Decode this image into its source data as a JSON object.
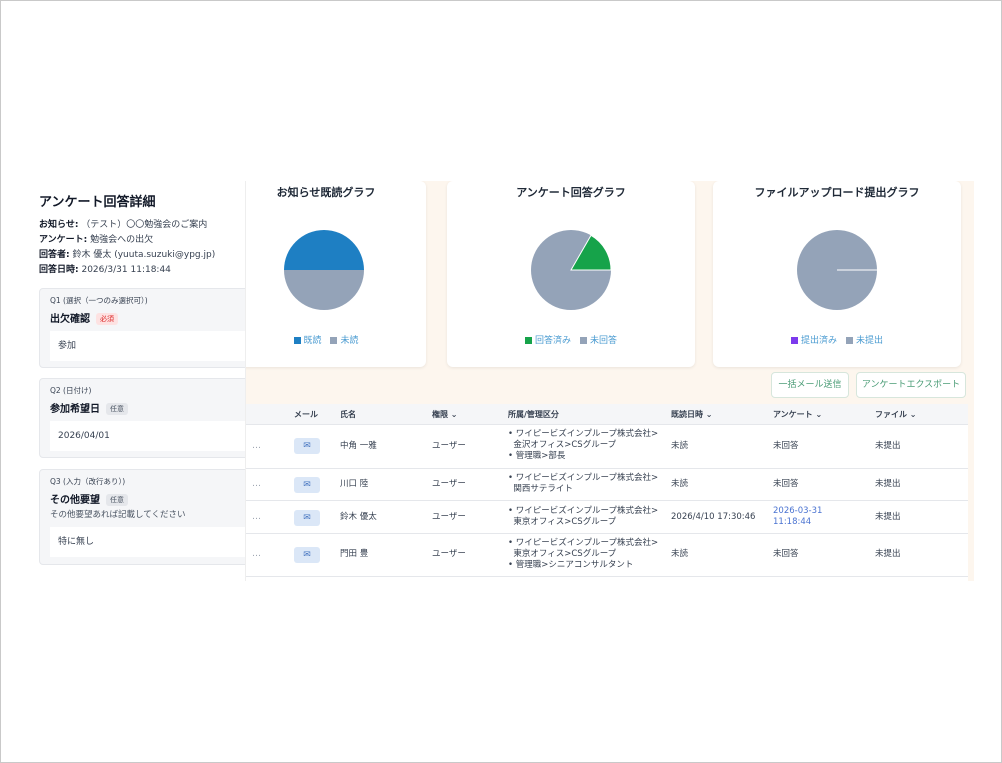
{
  "charts": {
    "read": {
      "title": "お知らせ既読グラフ",
      "legend": [
        {
          "label": "既読",
          "color": "#1e7fc3"
        },
        {
          "label": "未読",
          "color": "#94a3b8"
        }
      ]
    },
    "survey": {
      "title": "アンケート回答グラフ",
      "legend": [
        {
          "label": "回答済み",
          "color": "#16a34a"
        },
        {
          "label": "未回答",
          "color": "#94a3b8"
        }
      ]
    },
    "upload": {
      "title": "ファイルアップロード提出グラフ",
      "legend": [
        {
          "label": "提出済み",
          "color": "#7c3aed"
        },
        {
          "label": "未提出",
          "color": "#94a3b8"
        }
      ]
    }
  },
  "chart_data": [
    {
      "type": "pie",
      "title": "お知らせ既読グラフ",
      "labels": [
        "既読",
        "未読"
      ],
      "values": [
        50,
        50
      ]
    },
    {
      "type": "pie",
      "title": "アンケート回答グラフ",
      "labels": [
        "回答済み",
        "未回答"
      ],
      "values": [
        17,
        83
      ]
    },
    {
      "type": "pie",
      "title": "ファイルアップロード提出グラフ",
      "labels": [
        "提出済み",
        "未提出"
      ],
      "values": [
        0,
        100
      ]
    }
  ],
  "actions": {
    "bulk_mail": "一括メール送信",
    "export": "アンケートエクスポート"
  },
  "table": {
    "headers": {
      "mail": "メール",
      "name": "氏名",
      "role": "権限",
      "dept": "所属/管理区分",
      "read_date": "既読日時",
      "survey": "アンケート",
      "file": "ファイル"
    },
    "rows": [
      {
        "dots": "…",
        "name": "中角 一雅",
        "role": "ユーザー",
        "dept": [
          "ワイピービズインプループ株式会社>",
          "金沢オフィス>CSグループ",
          "管理職>部長"
        ],
        "read": "未読",
        "survey": "未回答",
        "file": "未提出"
      },
      {
        "dots": "…",
        "name": "川口 陸",
        "role": "ユーザー",
        "dept": [
          "ワイピービズインプループ株式会社>",
          "関西サテライト"
        ],
        "read": "未読",
        "survey": "未回答",
        "file": "未提出"
      },
      {
        "dots": "…",
        "name": "鈴木 優太",
        "role": "ユーザー",
        "dept": [
          "ワイピービズインプループ株式会社>",
          "東京オフィス>CSグループ"
        ],
        "read": "2026/4/10 17:30:46",
        "survey": "2026-03-31 11:18:44",
        "file": "未提出"
      },
      {
        "dots": "…",
        "name": "門田 豊",
        "role": "ユーザー",
        "dept": [
          "ワイピービズインプループ株式会社>",
          "東京オフィス>CSグループ",
          "管理職>シニアコンサルタント"
        ],
        "read": "未読",
        "survey": "未回答",
        "file": "未提出"
      }
    ]
  },
  "panel": {
    "title": "アンケート回答詳細",
    "notice_label": "お知らせ:",
    "notice": "（テスト）〇〇勉強会のご案内",
    "survey_label": "アンケート:",
    "survey": "勉強会への出欠",
    "respondent_label": "回答者:",
    "respondent": "鈴木 優太 (yuuta.suzuki@ypg.jp)",
    "date_label": "回答日時:",
    "date": "2026/3/31 11:18:44",
    "questions": [
      {
        "label": "Q1 (選択（一つのみ選択可）)",
        "title": "出欠確認",
        "tag": "必須",
        "desc": "",
        "answer": "参加"
      },
      {
        "label": "Q2 (日付け)",
        "title": "参加希望日",
        "tag": "任意",
        "desc": "",
        "answer": "2026/04/01"
      },
      {
        "label": "Q3 (入力（改行あり）)",
        "title": "その他要望",
        "tag": "任意",
        "desc": "その他要望あれば記載してください",
        "answer": "特に無し"
      }
    ]
  }
}
